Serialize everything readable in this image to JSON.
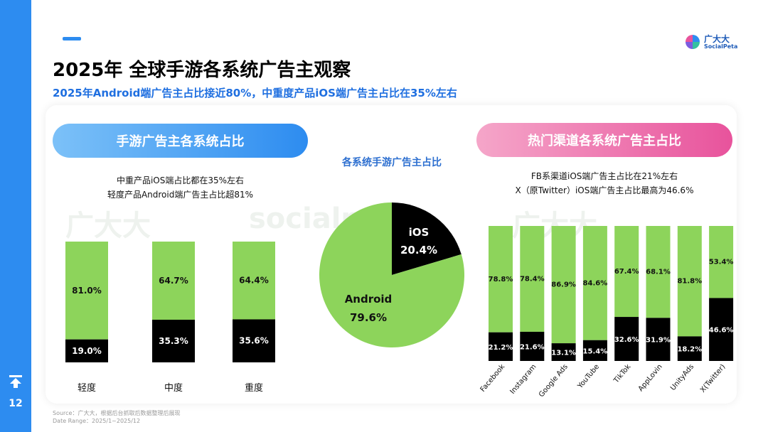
{
  "page": {
    "number": "12",
    "title": "2025年 全球手游各系统广告主观察",
    "subtitle": "2025年Android端广告主占比接近80%，中重度产品iOS端广告主占比在35%左右",
    "logo_cn": "广大大",
    "logo_en": "SocialPeta",
    "source_line1": "Source：广大大，根据后台抓取后数据整理后展现",
    "source_line2": "Date Range：2025/1~2025/12"
  },
  "colors": {
    "accent": "#2d8cf0",
    "android": "#8dd45b",
    "ios": "#000000"
  },
  "left_panel": {
    "heading": "手游广告主各系统占比",
    "note_line1": "中重产品iOS端占比都在35%左右",
    "note_line2": "轻度产品Android端广告主占比超81%"
  },
  "middle_panel": {
    "heading": "各系统手游广告主占比"
  },
  "right_panel": {
    "heading": "热门渠道各系统广告主占比",
    "note_line1": "FB系渠道iOS端广告主占比在21%左右",
    "note_line2": "X（原Twitter）iOS端广告主占比最高为46.6%"
  },
  "chart_data": [
    {
      "type": "bar",
      "stacked": true,
      "categories": [
        "轻度",
        "中度",
        "重度"
      ],
      "series": [
        {
          "name": "iOS",
          "values": [
            19.0,
            35.3,
            35.6
          ],
          "labels": [
            "19.0%",
            "35.3%",
            "35.6%"
          ]
        },
        {
          "name": "Android",
          "values": [
            81.0,
            64.7,
            64.4
          ],
          "labels": [
            "81.0%",
            "64.7%",
            "64.4%"
          ]
        }
      ]
    },
    {
      "type": "pie",
      "title": "各系统手游广告主占比",
      "slices": [
        {
          "name": "iOS",
          "value": 20.4,
          "label": "20.4%"
        },
        {
          "name": "Android",
          "value": 79.6,
          "label": "79.6%"
        }
      ]
    },
    {
      "type": "bar",
      "stacked": true,
      "categories": [
        "Facebook",
        "Instagram",
        "Google Ads",
        "YouTube",
        "TikTok",
        "AppLovin",
        "UnityAds",
        "X(Twitter)"
      ],
      "series": [
        {
          "name": "iOS",
          "values": [
            21.2,
            21.6,
            13.1,
            15.4,
            32.6,
            31.9,
            18.2,
            46.6
          ],
          "labels": [
            "21.2%",
            "21.6%",
            "13.1%",
            "15.4%",
            "32.6%",
            "31.9%",
            "18.2%",
            "46.6%"
          ]
        },
        {
          "name": "Android",
          "values": [
            78.8,
            78.4,
            86.9,
            84.6,
            67.4,
            68.1,
            81.8,
            53.4
          ],
          "labels": [
            "78.8%",
            "78.4%",
            "86.9%",
            "84.6%",
            "67.4%",
            "68.1%",
            "81.8%",
            "53.4%"
          ]
        }
      ]
    }
  ]
}
